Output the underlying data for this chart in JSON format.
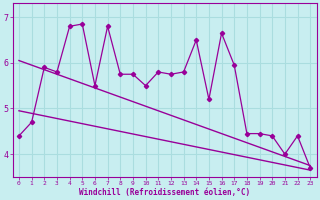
{
  "xlabel": "Windchill (Refroidissement éolien,°C)",
  "bg_color": "#c8eef0",
  "grid_color": "#aadddf",
  "line_color": "#990099",
  "x_values": [
    0,
    1,
    2,
    3,
    4,
    5,
    6,
    7,
    8,
    9,
    10,
    11,
    12,
    13,
    14,
    15,
    16,
    17,
    18,
    19,
    20,
    21,
    22,
    23
  ],
  "y_values": [
    4.4,
    4.7,
    5.9,
    5.8,
    6.8,
    6.85,
    5.5,
    6.8,
    5.75,
    5.75,
    5.5,
    5.8,
    5.75,
    5.8,
    6.5,
    5.2,
    6.65,
    5.95,
    4.45,
    4.45,
    4.4,
    4.0,
    4.4,
    3.7
  ],
  "reg_upper": [
    6.05,
    3.75
  ],
  "reg_lower": [
    4.95,
    3.65
  ],
  "ylim": [
    3.5,
    7.3
  ],
  "xlim": [
    -0.5,
    23.5
  ],
  "yticks": [
    4,
    5,
    6,
    7
  ],
  "xticks": [
    0,
    1,
    2,
    3,
    4,
    5,
    6,
    7,
    8,
    9,
    10,
    11,
    12,
    13,
    14,
    15,
    16,
    17,
    18,
    19,
    20,
    21,
    22,
    23
  ]
}
